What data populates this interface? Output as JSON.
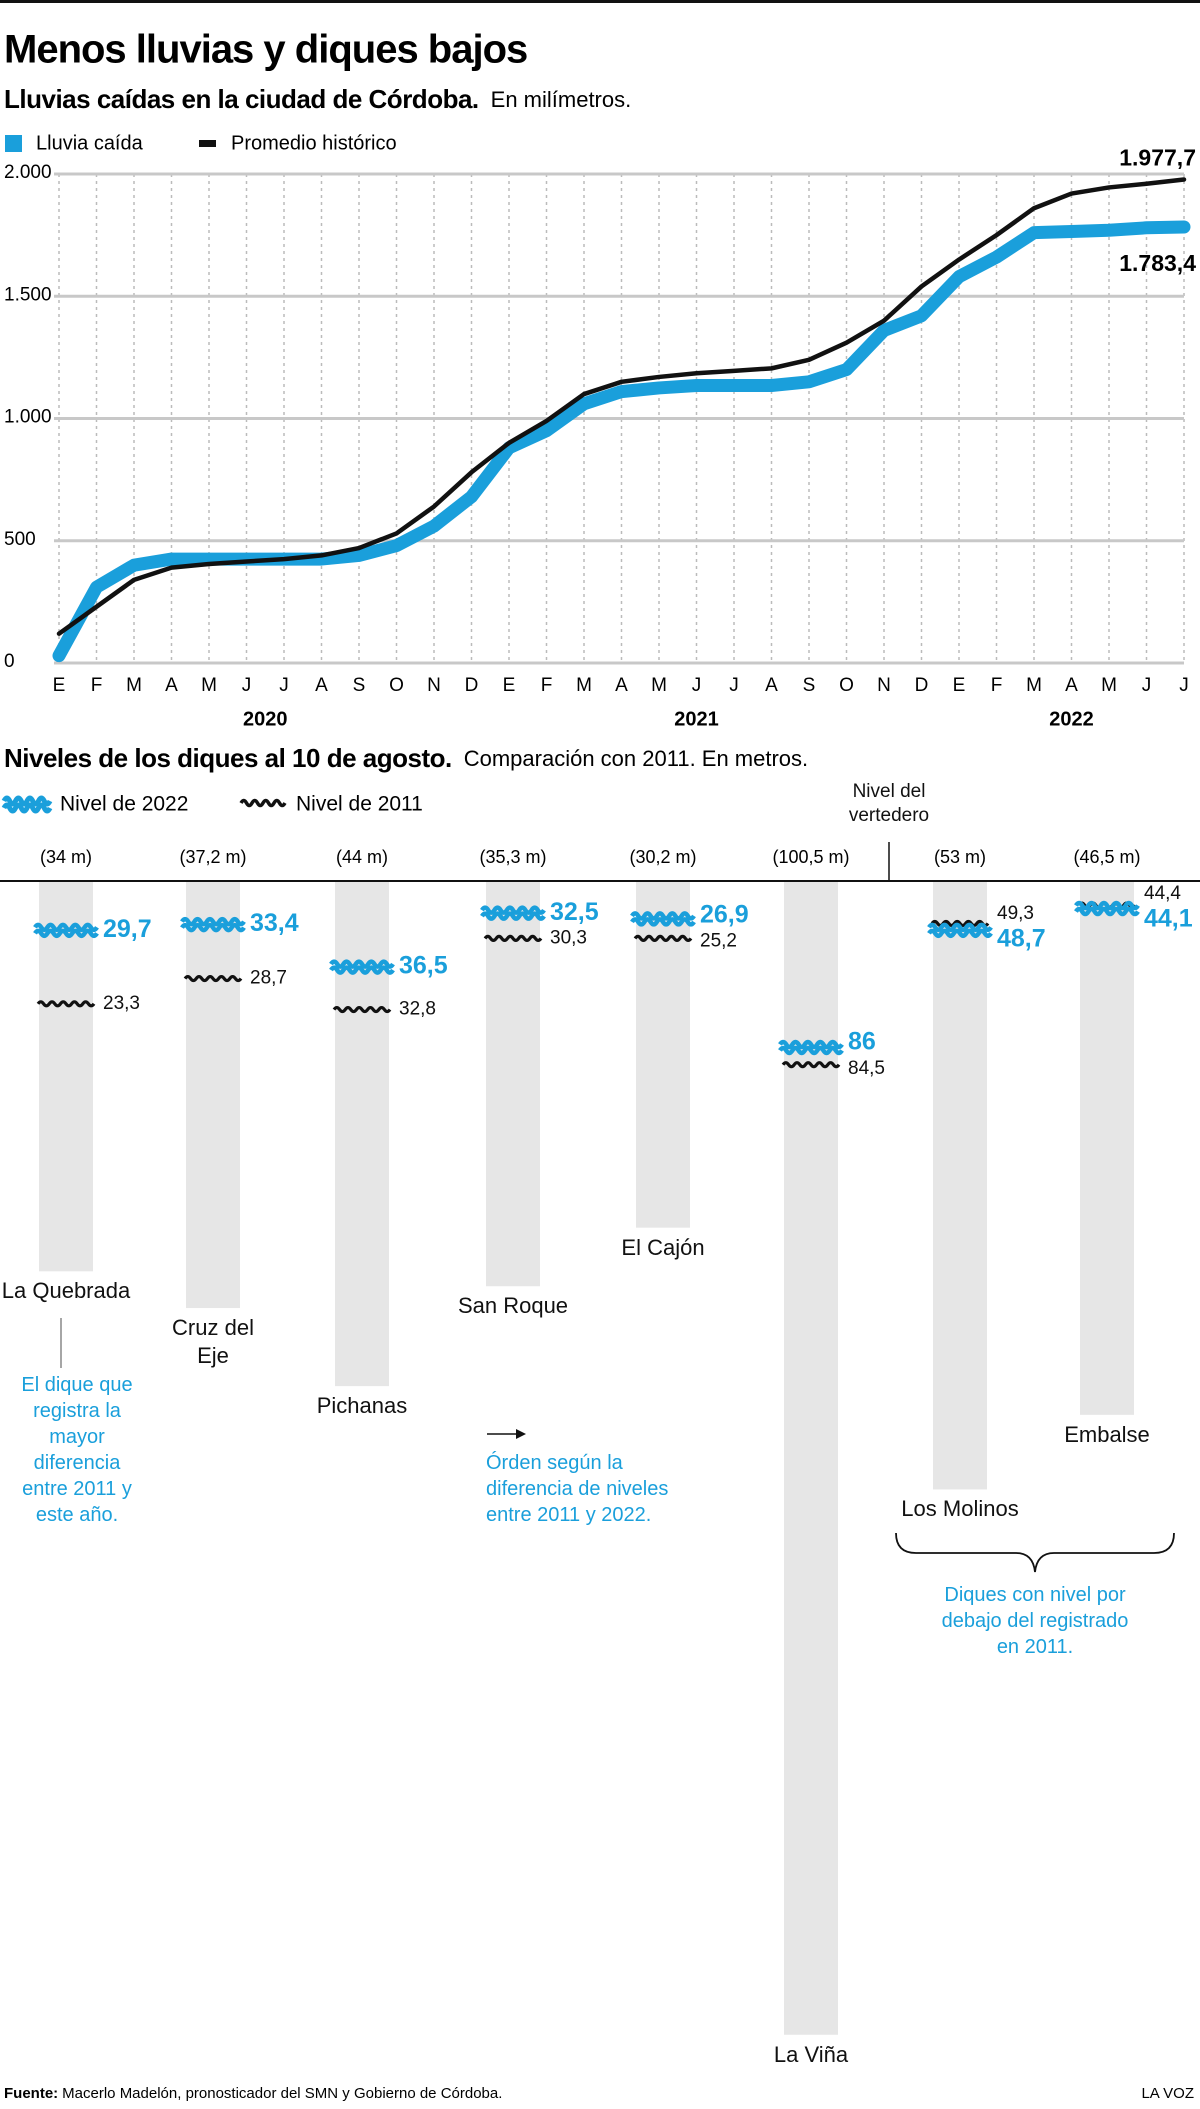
{
  "header": {
    "title": "Menos lluvias y diques bajos"
  },
  "chart_data": [
    {
      "type": "line",
      "title": "Lluvias caídas en la ciudad de Córdoba.",
      "subtitle": "En milímetros.",
      "categories": [
        "E",
        "F",
        "M",
        "A",
        "M",
        "J",
        "J",
        "A",
        "S",
        "O",
        "N",
        "D",
        "E",
        "F",
        "M",
        "A",
        "M",
        "J",
        "J",
        "A",
        "S",
        "O",
        "N",
        "D",
        "E",
        "F",
        "M",
        "A",
        "M",
        "J",
        "J"
      ],
      "years": [
        "2020",
        "2021",
        "2022"
      ],
      "series": [
        {
          "name": "Lluvia caída",
          "color": "#1a9fdb",
          "values": [
            30,
            310,
            400,
            425,
            425,
            425,
            425,
            425,
            440,
            480,
            560,
            680,
            880,
            950,
            1060,
            1110,
            1125,
            1135,
            1135,
            1135,
            1150,
            1200,
            1360,
            1420,
            1580,
            1660,
            1760,
            1765,
            1770,
            1780,
            1783.4
          ],
          "value_labels": [
            null,
            null,
            null,
            null,
            null,
            null,
            null,
            null,
            null,
            null,
            null,
            null,
            null,
            null,
            null,
            null,
            null,
            null,
            null,
            null,
            null,
            null,
            null,
            null,
            null,
            null,
            null,
            null,
            null,
            null,
            "1.783,4"
          ]
        },
        {
          "name": "Promedio histórico",
          "color": "#111111",
          "values": [
            120,
            230,
            340,
            390,
            405,
            415,
            425,
            440,
            470,
            530,
            640,
            780,
            900,
            990,
            1100,
            1150,
            1170,
            1185,
            1195,
            1205,
            1240,
            1310,
            1400,
            1540,
            1650,
            1750,
            1860,
            1920,
            1945,
            1960,
            1977.7
          ],
          "value_labels": [
            null,
            null,
            null,
            null,
            null,
            null,
            null,
            null,
            null,
            null,
            null,
            null,
            null,
            null,
            null,
            null,
            null,
            null,
            null,
            null,
            null,
            null,
            null,
            null,
            null,
            null,
            null,
            null,
            null,
            null,
            "1.977,7"
          ]
        }
      ],
      "ylim": [
        0,
        2000
      ],
      "yticks": [
        0,
        500,
        {
          "value": 1000,
          "label": "1.000"
        },
        {
          "value": 1500,
          "label": "1.500"
        },
        {
          "value": 2000,
          "label": "2.000"
        }
      ],
      "grid": true
    },
    {
      "type": "dam-levels",
      "title": "Niveles de los diques al 10 de agosto.",
      "subtitle": "Comparación con 2011. En metros.",
      "spillway_label": "Nivel del vertedero",
      "categories": [
        "La Quebrada",
        "Cruz del Eje",
        "Pichanas",
        "San Roque",
        "El Cajón",
        "La Viña",
        "Los Molinos",
        "Embalse"
      ],
      "capacity": [
        34,
        37.2,
        44,
        35.3,
        30.2,
        100.5,
        53,
        46.5
      ],
      "capacity_labels": [
        "(34 m)",
        "(37,2 m)",
        "(44 m)",
        "(35,3 m)",
        "(30,2 m)",
        "(100,5 m)",
        "(53 m)",
        "(46,5 m)"
      ],
      "series": [
        {
          "name": "Nivel de 2022",
          "color": "#1a9fdb",
          "values": [
            29.7,
            33.4,
            36.5,
            32.5,
            26.9,
            86,
            48.7,
            44.1
          ],
          "value_labels": [
            "29,7",
            "33,4",
            "36,5",
            "32,5",
            "26,9",
            "86",
            "48,7",
            "44,1"
          ]
        },
        {
          "name": "Nivel de 2011",
          "color": "#111111",
          "values": [
            23.3,
            28.7,
            32.8,
            30.3,
            25.2,
            84.5,
            49.3,
            44.4
          ],
          "value_labels": [
            "23,3",
            "28,7",
            "32,8",
            "30,3",
            "25,2",
            "84,5",
            "49,3",
            "44,4"
          ]
        }
      ],
      "annotations": [
        "El dique que registra la mayor diferencia entre 2011 y este año.",
        "Órden según la diferencia de niveles entre 2011 y 2022.",
        "Diques con nivel por debajo del registrado en 2011."
      ]
    }
  ],
  "footer": {
    "source_label": "Fuente:",
    "source": "Macerlo Madelón, pronosticador del SMN y Gobierno de Córdoba.",
    "credit": "LA VOZ"
  }
}
